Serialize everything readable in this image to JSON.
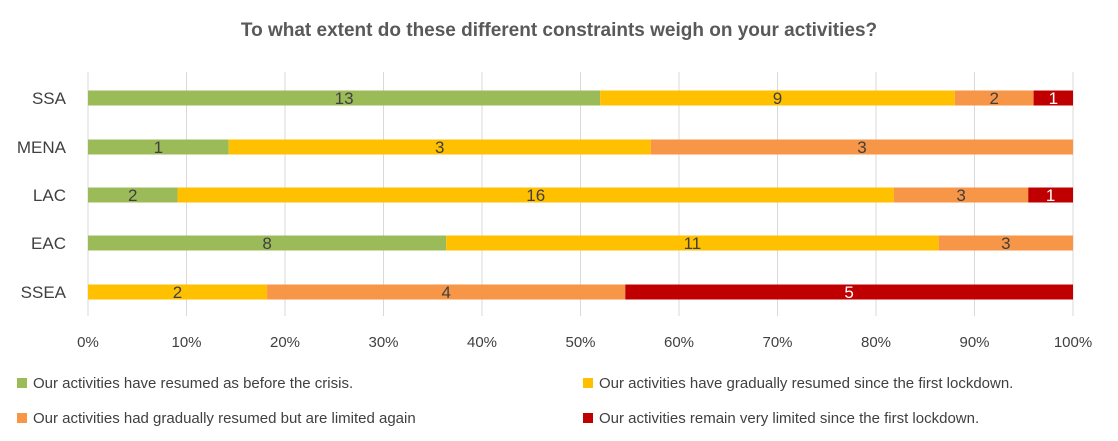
{
  "chart_data": {
    "type": "bar",
    "orientation": "horizontal",
    "stacked": "percent",
    "title": "To what extent do these different constraints weigh on your activities?",
    "categories": [
      "SSA",
      "MENA",
      "LAC",
      "EAC",
      "SSEA"
    ],
    "series": [
      {
        "name": "Our activities have resumed as before the crisis.",
        "color": "#9BBB59",
        "label_color": "#404040",
        "values": [
          13,
          1,
          2,
          8,
          0
        ]
      },
      {
        "name": "Our activities have gradually resumed since the first lockdown.",
        "color": "#FFC000",
        "label_color": "#404040",
        "values": [
          9,
          3,
          16,
          11,
          2
        ]
      },
      {
        "name": "Our activities had gradually resumed but are limited again",
        "color": "#F79646",
        "label_color": "#404040",
        "values": [
          2,
          3,
          3,
          3,
          4
        ]
      },
      {
        "name": "Our activities remain very limited since the first lockdown.",
        "color": "#C00000",
        "label_color": "#ffffff",
        "values": [
          1,
          0,
          1,
          0,
          5
        ]
      }
    ],
    "xlim": [
      0,
      100
    ],
    "x_ticks": [
      "0%",
      "10%",
      "20%",
      "30%",
      "40%",
      "50%",
      "60%",
      "70%",
      "80%",
      "90%",
      "100%"
    ],
    "grid": true,
    "legend_position": "bottom"
  }
}
